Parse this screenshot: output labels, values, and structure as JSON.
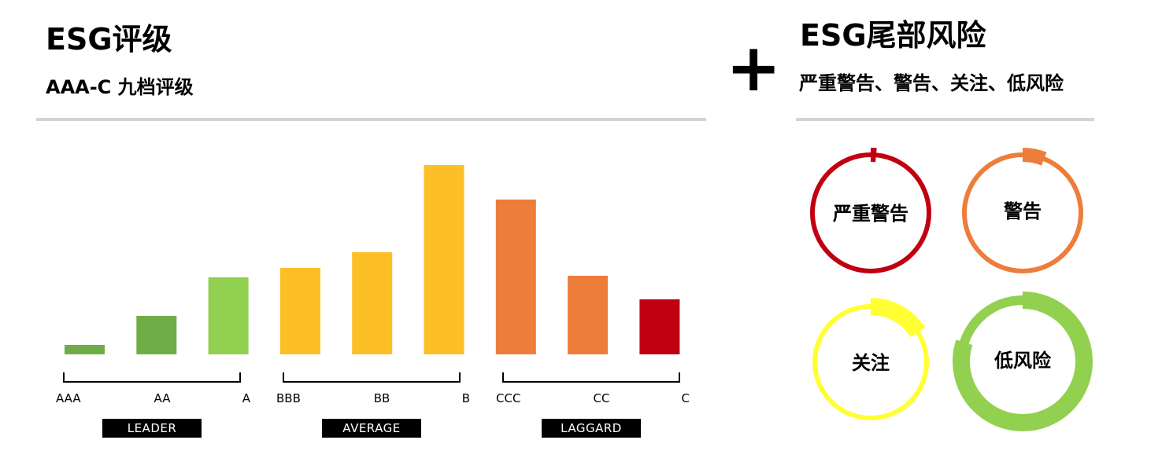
{
  "left": {
    "title": "ESG评级",
    "subtitle": "AAA-C 九档评级"
  },
  "plus_sign": "+",
  "right": {
    "title": "ESG尾部风险",
    "subtitle": "严重警告、警告、关注、低风险"
  },
  "chart_data": {
    "type": "bar",
    "categories": [
      "AAA",
      "AA",
      "A",
      "BBB",
      "BB",
      "B",
      "CCC",
      "CC",
      "C"
    ],
    "values": [
      12,
      49,
      98,
      110,
      130,
      241,
      197,
      100,
      70
    ],
    "colors": [
      "#70ad47",
      "#70ad47",
      "#92d050",
      "#fdbf26",
      "#fdbf26",
      "#fdbf26",
      "#ed7d3a",
      "#ed7d3a",
      "#c00011"
    ],
    "groups": [
      {
        "label": "LEADER",
        "categories": [
          "AAA",
          "AA",
          "A"
        ]
      },
      {
        "label": "AVERAGE",
        "categories": [
          "BBB",
          "BB",
          "B"
        ]
      },
      {
        "label": "LAGGARD",
        "categories": [
          "CCC",
          "CC",
          "C"
        ]
      }
    ],
    "ylim": [
      0,
      250
    ],
    "grid": false
  },
  "risk_levels": [
    {
      "label": "严重警告",
      "color": "#c00011",
      "level": 0.03
    },
    {
      "label": "警告",
      "color": "#ed7d3a",
      "level": 0.06
    },
    {
      "label": "关注",
      "color": "#ffff33",
      "level": 0.16
    },
    {
      "label": "低风险",
      "color": "#92d050",
      "level": 0.8
    }
  ]
}
